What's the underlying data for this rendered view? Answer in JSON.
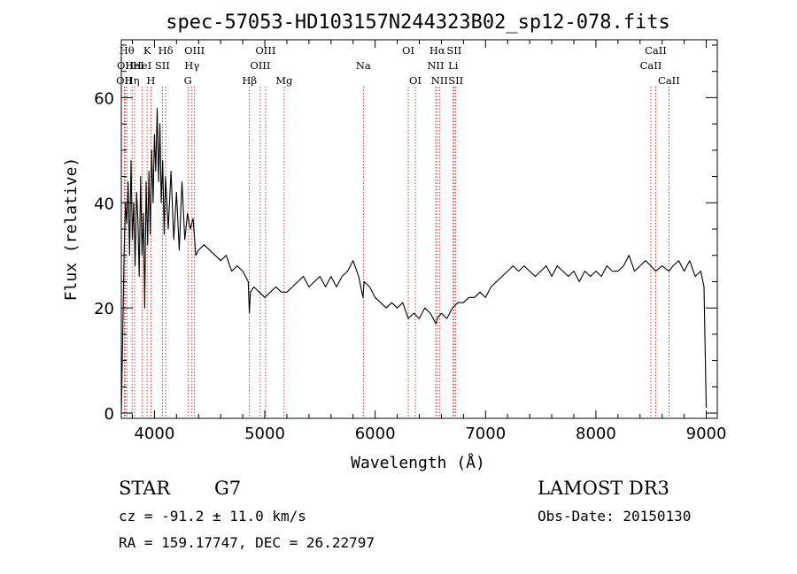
{
  "chart_data": {
    "type": "line",
    "title": "spec-57053-HD103157N244323B02_sp12-078.fits",
    "xlabel": "Wavelength (Å)",
    "ylabel": "Flux (relative)",
    "xlim": [
      3700,
      9100
    ],
    "ylim": [
      -1,
      71
    ],
    "xticks": [
      4000,
      5000,
      6000,
      7000,
      8000,
      9000
    ],
    "yticks": [
      0,
      20,
      40,
      60
    ],
    "grid": false,
    "series": [
      {
        "x": [
          3700,
          3712,
          3725,
          3738,
          3750,
          3762,
          3775,
          3788,
          3800,
          3812,
          3825,
          3838,
          3850,
          3862,
          3875,
          3888,
          3900,
          3912,
          3925,
          3938,
          3950,
          3962,
          3975,
          3988,
          4000,
          4012,
          4025,
          4038,
          4050,
          4062,
          4075,
          4088,
          4100,
          4125,
          4150,
          4175,
          4200,
          4225,
          4250,
          4275,
          4300,
          4325,
          4350,
          4375,
          4400,
          4450,
          4500,
          4550,
          4600,
          4650,
          4700,
          4750,
          4800,
          4850,
          4860,
          4870,
          4900,
          4950,
          5000,
          5050,
          5100,
          5150,
          5200,
          5250,
          5300,
          5350,
          5400,
          5450,
          5500,
          5550,
          5600,
          5650,
          5700,
          5750,
          5800,
          5850,
          5890,
          5900,
          5950,
          6000,
          6050,
          6100,
          6150,
          6200,
          6250,
          6300,
          6350,
          6400,
          6450,
          6500,
          6550,
          6563,
          6600,
          6650,
          6700,
          6750,
          6800,
          6850,
          6900,
          6950,
          7000,
          7050,
          7100,
          7150,
          7200,
          7250,
          7300,
          7350,
          7400,
          7450,
          7500,
          7550,
          7600,
          7650,
          7700,
          7750,
          7800,
          7850,
          7900,
          7950,
          8000,
          8050,
          8100,
          8150,
          8200,
          8250,
          8300,
          8350,
          8400,
          8450,
          8498,
          8542,
          8600,
          8662,
          8700,
          8750,
          8800,
          8850,
          8900,
          8950,
          8980,
          9000
        ],
        "y": [
          0,
          14,
          30,
          40,
          36,
          44,
          30,
          48,
          33,
          40,
          28,
          42,
          37,
          26,
          45,
          30,
          38,
          20,
          44,
          32,
          46,
          34,
          50,
          40,
          53,
          46,
          58,
          44,
          55,
          40,
          48,
          34,
          45,
          35,
          46,
          33,
          42,
          31,
          44,
          33,
          38,
          35,
          37,
          30,
          31,
          32,
          31,
          30,
          29,
          30,
          27,
          28,
          27,
          25,
          19,
          23,
          24,
          23,
          22,
          23,
          24,
          23,
          23,
          24,
          25,
          26,
          24,
          25,
          26,
          24,
          26,
          24,
          26,
          27,
          29,
          26,
          22,
          25,
          24,
          22,
          21,
          20,
          21,
          20,
          21,
          18,
          19,
          18,
          20,
          19,
          17,
          18,
          19,
          18,
          20,
          21,
          21,
          22,
          22,
          23,
          22,
          24,
          25,
          26,
          27,
          28,
          27,
          28,
          27,
          26,
          27,
          28,
          26,
          28,
          27,
          26,
          27,
          25,
          27,
          26,
          27,
          26,
          28,
          27,
          27,
          28,
          30,
          27,
          28,
          29,
          28,
          27,
          28,
          27,
          28,
          29,
          27,
          29,
          26,
          27,
          24,
          1
        ]
      }
    ],
    "lines": [
      {
        "wl": 3727,
        "label": "OII",
        "row": 2
      },
      {
        "wl": 3734,
        "label": "OII",
        "row": 1
      },
      {
        "wl": 3750,
        "label": "Hθ",
        "row": 0
      },
      {
        "wl": 3797,
        "label": "Hη",
        "row": 2
      },
      {
        "wl": 3820,
        "label": "HeI",
        "row": 1
      },
      {
        "wl": 3889,
        "label": "HeI",
        "row": 1
      },
      {
        "wl": 3934,
        "label": "K",
        "row": 0
      },
      {
        "wl": 3968,
        "label": "H",
        "row": 2
      },
      {
        "wl": 4072,
        "label": "SII",
        "row": 1
      },
      {
        "wl": 4102,
        "label": "Hδ",
        "row": 0
      },
      {
        "wl": 4304,
        "label": "G",
        "row": 2
      },
      {
        "wl": 4340,
        "label": "Hγ",
        "row": 1
      },
      {
        "wl": 4363,
        "label": "OIII",
        "row": 0
      },
      {
        "wl": 4861,
        "label": "Hβ",
        "row": 2
      },
      {
        "wl": 4959,
        "label": "OIII",
        "row": 1
      },
      {
        "wl": 5007,
        "label": "OIII",
        "row": 0
      },
      {
        "wl": 5175,
        "label": "Mg",
        "row": 2
      },
      {
        "wl": 5893,
        "label": "Na",
        "row": 1
      },
      {
        "wl": 6300,
        "label": "OI",
        "row": 0
      },
      {
        "wl": 6364,
        "label": "OI",
        "row": 2
      },
      {
        "wl": 6548,
        "label": "NII",
        "row": 1
      },
      {
        "wl": 6563,
        "label": "Hα",
        "row": 0
      },
      {
        "wl": 6583,
        "label": "NII",
        "row": 2
      },
      {
        "wl": 6707,
        "label": "Li",
        "row": 1
      },
      {
        "wl": 6716,
        "label": "SII",
        "row": 0
      },
      {
        "wl": 6731,
        "label": "SII",
        "row": 2
      },
      {
        "wl": 8498,
        "label": "CaII",
        "row": 1
      },
      {
        "wl": 8542,
        "label": "CaII",
        "row": 0
      },
      {
        "wl": 8662,
        "label": "CaII",
        "row": 2
      }
    ]
  },
  "info": {
    "object_class": "STAR",
    "subclass": "G7",
    "survey": "LAMOST DR3",
    "redshift": "cz = -91.2 ± 11.0 km/s",
    "obs_date": "Obs-Date: 20150130",
    "coords": "RA = 159.17747, DEC =  26.22797"
  },
  "colors": {
    "spectrum": "#000000",
    "line_marker": "#c01010",
    "axis": "#000000",
    "background": "#ffffff"
  }
}
